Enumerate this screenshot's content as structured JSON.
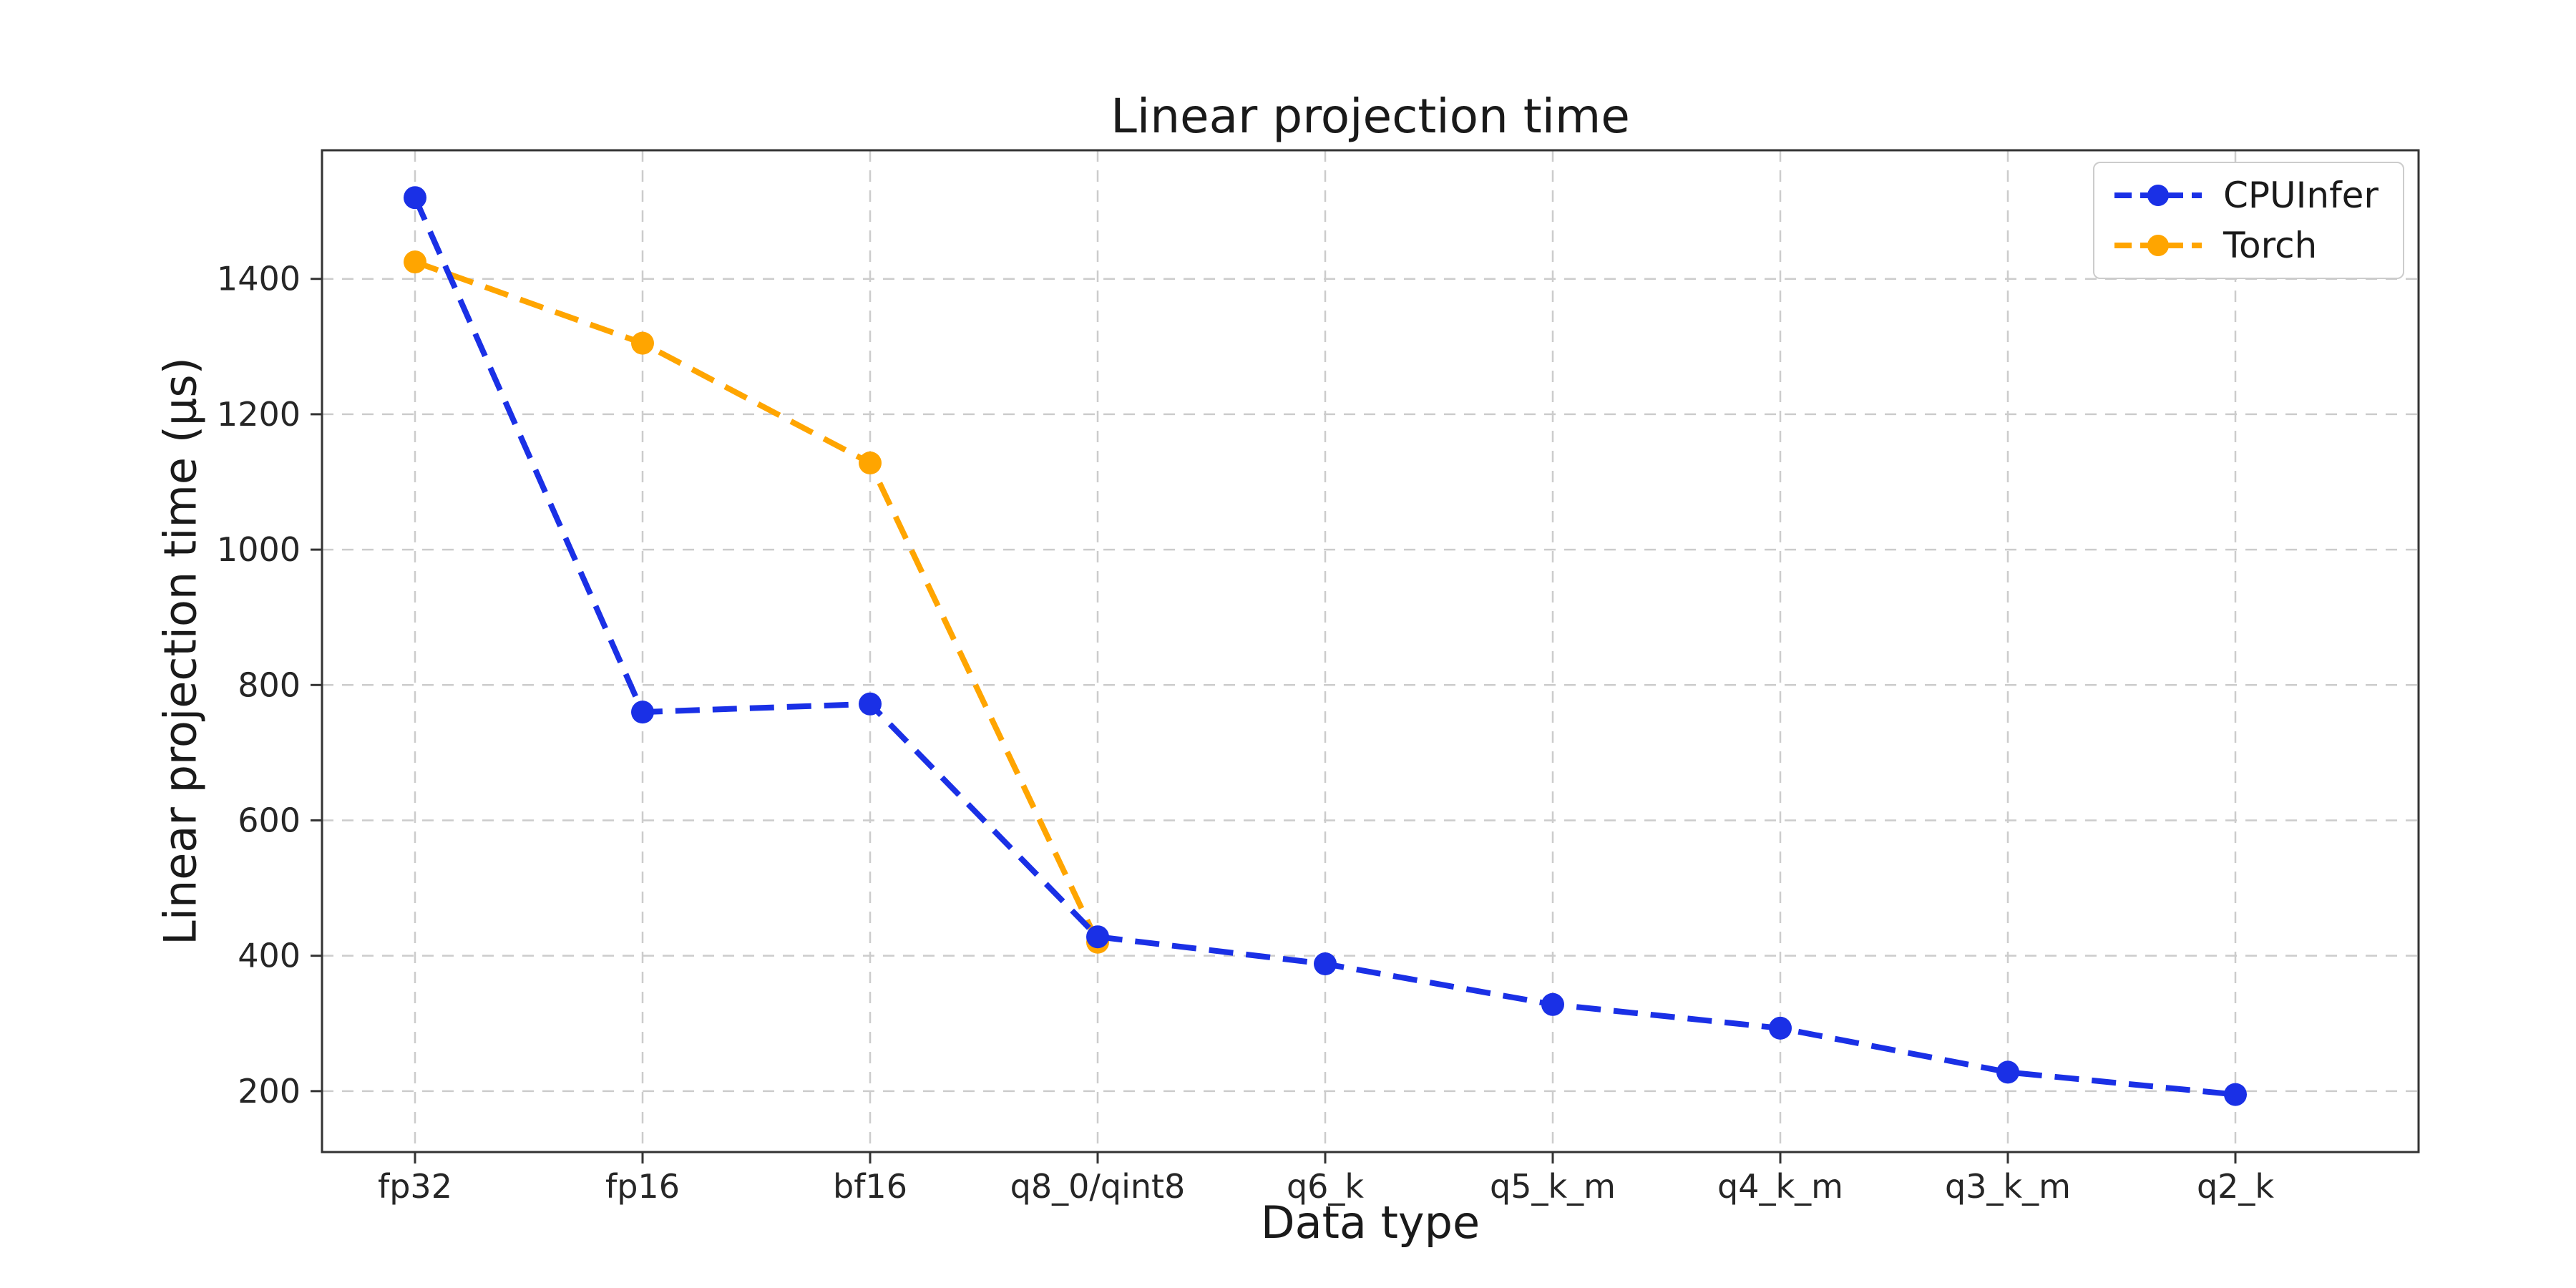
{
  "figure": {
    "background": "#ffffff"
  },
  "chart_data": {
    "type": "line",
    "title": "Linear projection time",
    "xlabel": "Data type",
    "ylabel": "Linear projection time (µs)",
    "categories": [
      "fp32",
      "fp16",
      "bf16",
      "q8_0/qint8",
      "q6_k",
      "q5_k_m",
      "q4_k_m",
      "q3_k_m",
      "q2_k"
    ],
    "series": [
      {
        "name": "CPUInfer",
        "color": "#1a30e6",
        "line_style": "dashed",
        "marker": "circle",
        "values": [
          1520,
          760,
          772,
          428,
          388,
          328,
          293,
          228,
          195
        ]
      },
      {
        "name": "Torch",
        "color": "#ffa500",
        "line_style": "dashed",
        "marker": "circle",
        "values": [
          1425,
          1305,
          1128,
          420,
          null,
          null,
          null,
          null,
          null
        ]
      }
    ],
    "yticks": [
      200,
      400,
      600,
      800,
      1000,
      1200,
      1400
    ],
    "ylim": [
      110,
      1590
    ],
    "grid": true,
    "grid_style": "dashed",
    "legend_position": "upper right",
    "colors": {
      "grid": "#cccccc",
      "spine": "#333333",
      "text": "#1a1a1a"
    }
  }
}
